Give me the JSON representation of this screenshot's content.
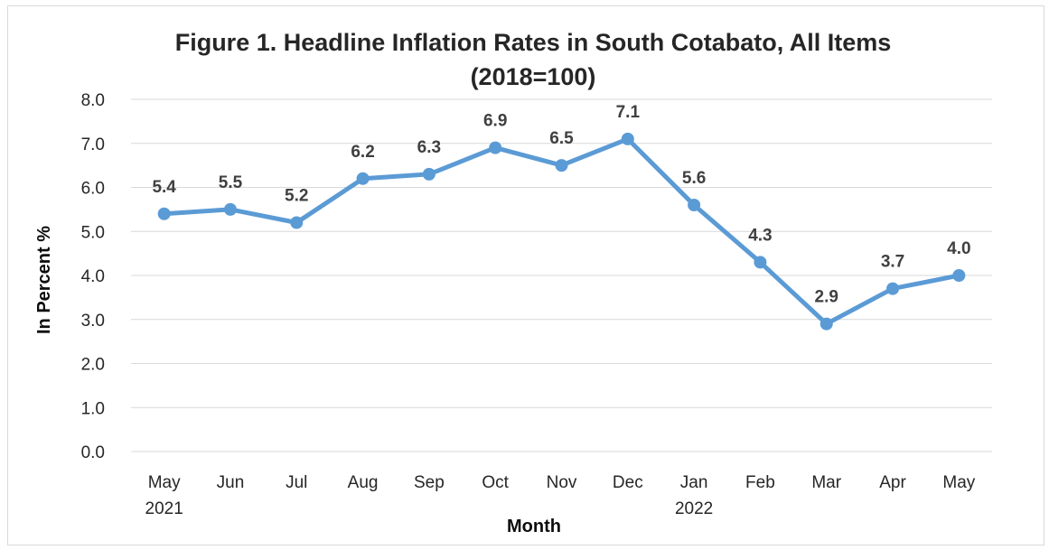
{
  "chart_data": {
    "type": "line",
    "title_line1": "Figure 1. Headline Inflation Rates in South Cotabato, All Items",
    "title_line2": "(2018=100)",
    "xlabel": "Month",
    "ylabel": "In Percent %",
    "categories": [
      "May",
      "Jun",
      "Jul",
      "Aug",
      "Sep",
      "Oct",
      "Nov",
      "Dec",
      "Jan",
      "Feb",
      "Mar",
      "Apr",
      "May"
    ],
    "category_sublabels": [
      "2021",
      "",
      "",
      "",
      "",
      "",
      "",
      "",
      "2022",
      "",
      "",
      "",
      ""
    ],
    "series": [
      {
        "values": [
          5.4,
          5.5,
          5.2,
          6.2,
          6.3,
          6.9,
          6.5,
          7.1,
          5.6,
          4.3,
          2.9,
          3.7,
          4.0
        ],
        "color": "#5b9bd5"
      }
    ],
    "data_labels": [
      "5.4",
      "5.5",
      "5.2",
      "6.2",
      "6.3",
      "6.9",
      "6.5",
      "7.1",
      "5.6",
      "4.3",
      "2.9",
      "3.7",
      "4.0"
    ],
    "y_ticks": [
      "0.0",
      "1.0",
      "2.0",
      "3.0",
      "4.0",
      "5.0",
      "6.0",
      "7.0",
      "8.0"
    ],
    "ylim": [
      0,
      8
    ],
    "grid": true,
    "legend": "none"
  }
}
